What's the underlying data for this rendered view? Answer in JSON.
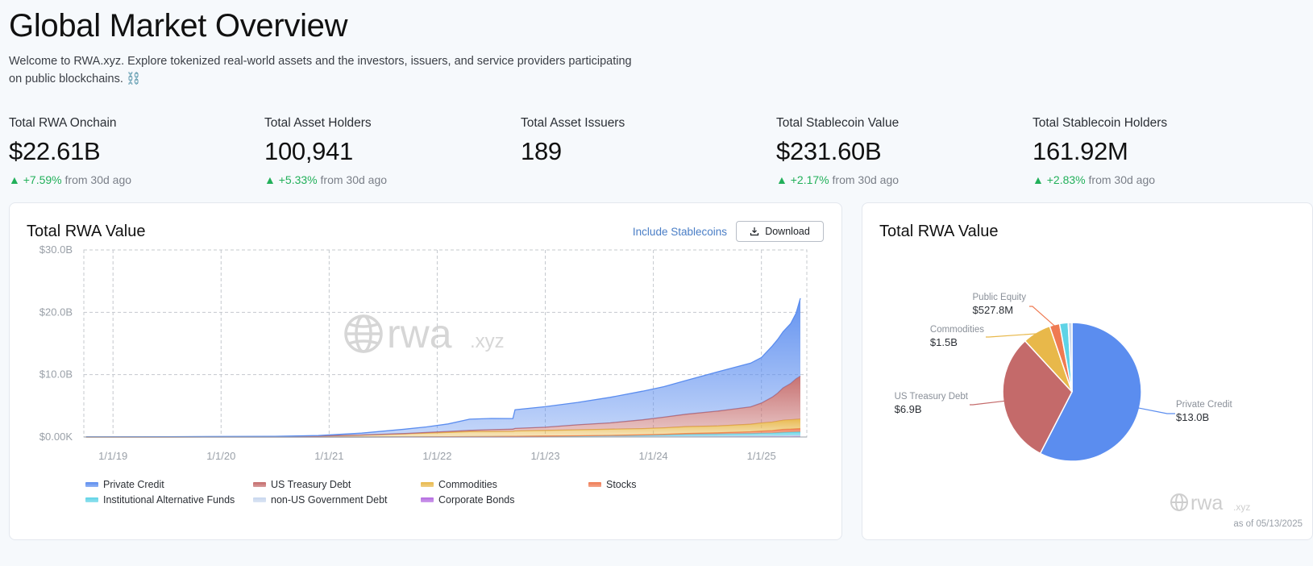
{
  "page": {
    "title": "Global Market Overview",
    "intro": "Welcome to RWA.xyz. Explore tokenized real-world assets and the investors, issuers, and service providers participating on public blockchains. ⛓️"
  },
  "stats": [
    {
      "label": "Total RWA Onchain",
      "value": "$22.61B",
      "change": "+7.59%",
      "suffix": "from 30d ago"
    },
    {
      "label": "Total Asset Holders",
      "value": "100,941",
      "change": "+5.33%",
      "suffix": "from 30d ago"
    },
    {
      "label": "Total Asset Issuers",
      "value": "189",
      "change": "",
      "suffix": ""
    },
    {
      "label": "Total Stablecoin Value",
      "value": "$231.60B",
      "change": "+2.17%",
      "suffix": "from 30d ago"
    },
    {
      "label": "Total Stablecoin Holders",
      "value": "161.92M",
      "change": "+2.83%",
      "suffix": "from 30d ago"
    }
  ],
  "area_card": {
    "title": "Total RWA Value",
    "toggle_label": "Include Stablecoins",
    "download_label": "Download",
    "watermark": {
      "main": "rwa",
      "suffix": ".xyz"
    }
  },
  "pie_card": {
    "title": "Total RWA Value",
    "watermark": {
      "main": "rwa",
      "suffix": ".xyz"
    },
    "asof": "as of 05/13/2025"
  },
  "colors": {
    "private_credit": "#5b8def",
    "us_treasury": "#c46a6a",
    "commodities": "#e8b84a",
    "stocks": "#ef7a52",
    "inst_alt": "#5fd3e6",
    "non_us_gov": "#c8d7ee",
    "corp_bonds": "#b46be0",
    "positive": "#22b05a",
    "link": "#4a7ec6"
  },
  "chart_data": [
    {
      "type": "area",
      "stacked": true,
      "title": "Total RWA Value",
      "ylim": [
        0,
        30
      ],
      "yticks": [
        0,
        10,
        20,
        30
      ],
      "ytick_labels": [
        "$0.00K",
        "$10.0B",
        "$20.0B",
        "$30.0B"
      ],
      "xlim": [
        2018.73,
        2025.42
      ],
      "xticks": [
        2019,
        2020,
        2021,
        2022,
        2023,
        2024,
        2025
      ],
      "xtick_labels": [
        "1/1/19",
        "1/1/20",
        "1/1/21",
        "1/1/22",
        "1/1/23",
        "1/1/24",
        "1/1/25"
      ],
      "grid": true,
      "legend_position": "bottom",
      "x": [
        2018.75,
        2019.5,
        2020.5,
        2020.9,
        2021.3,
        2021.7,
        2021.9,
        2022.1,
        2022.3,
        2022.5,
        2022.7,
        2022.72,
        2023.0,
        2023.3,
        2023.6,
        2023.9,
        2024.1,
        2024.3,
        2024.6,
        2024.9,
        2025.0,
        2025.1,
        2025.15,
        2025.2,
        2025.27,
        2025.32,
        2025.36
      ],
      "series": [
        {
          "name": "Private Credit",
          "color_key": "private_credit",
          "values": [
            0.03,
            0.05,
            0.06,
            0.08,
            0.3,
            0.7,
            0.9,
            1.2,
            1.8,
            1.8,
            1.7,
            3.0,
            3.3,
            3.6,
            4.1,
            4.6,
            4.9,
            5.4,
            6.3,
            7.0,
            7.3,
            8.2,
            8.6,
            9.0,
            9.6,
            10.5,
            12.5
          ]
        },
        {
          "name": "US Treasury Debt",
          "color_key": "us_treasury",
          "values": [
            0.0,
            0.0,
            0.0,
            0.0,
            0.02,
            0.05,
            0.1,
            0.15,
            0.2,
            0.3,
            0.35,
            0.4,
            0.5,
            0.8,
            1.0,
            1.4,
            1.7,
            2.0,
            2.4,
            2.8,
            3.2,
            4.0,
            4.5,
            5.2,
            5.8,
            6.5,
            6.9
          ]
        },
        {
          "name": "Commodities",
          "color_key": "commodities",
          "values": [
            0.0,
            0.0,
            0.05,
            0.15,
            0.3,
            0.5,
            0.6,
            0.7,
            0.8,
            0.8,
            0.8,
            0.85,
            0.9,
            0.95,
            1.0,
            1.0,
            1.05,
            1.1,
            1.1,
            1.2,
            1.3,
            1.35,
            1.4,
            1.45,
            1.5,
            1.5,
            1.5
          ]
        },
        {
          "name": "Stocks",
          "color_key": "stocks",
          "values": [
            0,
            0,
            0,
            0,
            0,
            0,
            0,
            0,
            0,
            0,
            0.01,
            0.01,
            0.02,
            0.03,
            0.05,
            0.08,
            0.1,
            0.15,
            0.2,
            0.3,
            0.35,
            0.4,
            0.45,
            0.5,
            0.5,
            0.52,
            0.53
          ]
        },
        {
          "name": "Institutional Alternative Funds",
          "color_key": "inst_alt",
          "values": [
            0,
            0,
            0,
            0,
            0,
            0,
            0,
            0.01,
            0.02,
            0.03,
            0.04,
            0.05,
            0.06,
            0.08,
            0.1,
            0.15,
            0.2,
            0.25,
            0.3,
            0.35,
            0.4,
            0.42,
            0.45,
            0.48,
            0.5,
            0.52,
            0.55
          ]
        },
        {
          "name": "non-US Government Debt",
          "color_key": "non_us_gov",
          "values": [
            0,
            0,
            0,
            0,
            0,
            0.01,
            0.02,
            0.03,
            0.04,
            0.05,
            0.06,
            0.06,
            0.07,
            0.08,
            0.09,
            0.1,
            0.1,
            0.12,
            0.13,
            0.14,
            0.15,
            0.16,
            0.17,
            0.18,
            0.2,
            0.2,
            0.2
          ]
        },
        {
          "name": "Corporate Bonds",
          "color_key": "corp_bonds",
          "values": [
            0,
            0,
            0,
            0,
            0,
            0,
            0,
            0,
            0,
            0,
            0,
            0,
            0.01,
            0.01,
            0.02,
            0.02,
            0.03,
            0.03,
            0.04,
            0.05,
            0.05,
            0.06,
            0.06,
            0.07,
            0.07,
            0.08,
            0.08
          ]
        }
      ]
    },
    {
      "type": "pie",
      "title": "Total RWA Value",
      "slices": [
        {
          "name": "Private Credit",
          "value": 13.0,
          "label": "$13.0B",
          "color_key": "private_credit"
        },
        {
          "name": "US Treasury Debt",
          "value": 6.9,
          "label": "$6.9B",
          "color_key": "us_treasury"
        },
        {
          "name": "Commodities",
          "value": 1.5,
          "label": "$1.5B",
          "color_key": "commodities"
        },
        {
          "name": "Public Equity",
          "value": 0.5278,
          "label": "$527.8M",
          "color_key": "stocks"
        },
        {
          "name": "",
          "value": 0.45,
          "label": "",
          "color_key": "inst_alt"
        },
        {
          "name": "",
          "value": 0.2,
          "label": "",
          "color_key": "non_us_gov"
        }
      ]
    }
  ]
}
